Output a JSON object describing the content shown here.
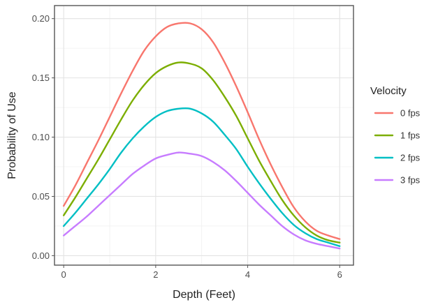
{
  "chart_data": {
    "type": "line",
    "xlabel": "Depth (Feet)",
    "ylabel": "Probability of Use",
    "xlim": [
      -0.2,
      6.3
    ],
    "ylim": [
      -0.008,
      0.211
    ],
    "x_ticks": [
      0,
      2,
      4,
      6
    ],
    "x_tick_labels": [
      "0",
      "2",
      "4",
      "6"
    ],
    "y_ticks": [
      0.0,
      0.05,
      0.1,
      0.15,
      0.2
    ],
    "y_tick_labels": [
      "0.00",
      "0.05",
      "0.10",
      "0.15",
      "0.20"
    ],
    "x_minor_ticks": [
      1,
      3,
      5
    ],
    "y_minor_ticks": [
      0.025,
      0.075,
      0.125,
      0.175
    ],
    "grid": true,
    "legend": {
      "title": "Velocity",
      "position": "right"
    },
    "x": [
      0,
      0.25,
      0.5,
      0.75,
      1,
      1.25,
      1.5,
      1.75,
      2,
      2.25,
      2.5,
      2.75,
      3,
      3.25,
      3.5,
      3.75,
      4,
      4.25,
      4.5,
      4.75,
      5,
      5.25,
      5.5,
      5.75,
      6
    ],
    "series": [
      {
        "name": "0 fps",
        "color": "#F8766D",
        "values": [
          0.042,
          0.059,
          0.078,
          0.097,
          0.117,
          0.137,
          0.156,
          0.173,
          0.185,
          0.193,
          0.196,
          0.196,
          0.191,
          0.18,
          0.163,
          0.143,
          0.121,
          0.098,
          0.077,
          0.058,
          0.041,
          0.029,
          0.021,
          0.017,
          0.014
        ]
      },
      {
        "name": "1 fps",
        "color": "#7CAE00",
        "values": [
          0.034,
          0.049,
          0.065,
          0.081,
          0.098,
          0.115,
          0.131,
          0.144,
          0.154,
          0.16,
          0.163,
          0.162,
          0.158,
          0.148,
          0.134,
          0.118,
          0.099,
          0.08,
          0.063,
          0.047,
          0.034,
          0.024,
          0.017,
          0.013,
          0.011
        ]
      },
      {
        "name": "2 fps",
        "color": "#00BFC4",
        "values": [
          0.025,
          0.036,
          0.048,
          0.06,
          0.073,
          0.087,
          0.099,
          0.109,
          0.117,
          0.122,
          0.124,
          0.124,
          0.12,
          0.113,
          0.102,
          0.09,
          0.075,
          0.061,
          0.048,
          0.036,
          0.026,
          0.019,
          0.014,
          0.011,
          0.008
        ]
      },
      {
        "name": "3 fps",
        "color": "#C77CFF",
        "values": [
          0.017,
          0.025,
          0.033,
          0.042,
          0.051,
          0.06,
          0.069,
          0.076,
          0.082,
          0.085,
          0.087,
          0.086,
          0.084,
          0.079,
          0.072,
          0.063,
          0.053,
          0.043,
          0.034,
          0.025,
          0.018,
          0.013,
          0.01,
          0.008,
          0.006
        ]
      }
    ]
  }
}
